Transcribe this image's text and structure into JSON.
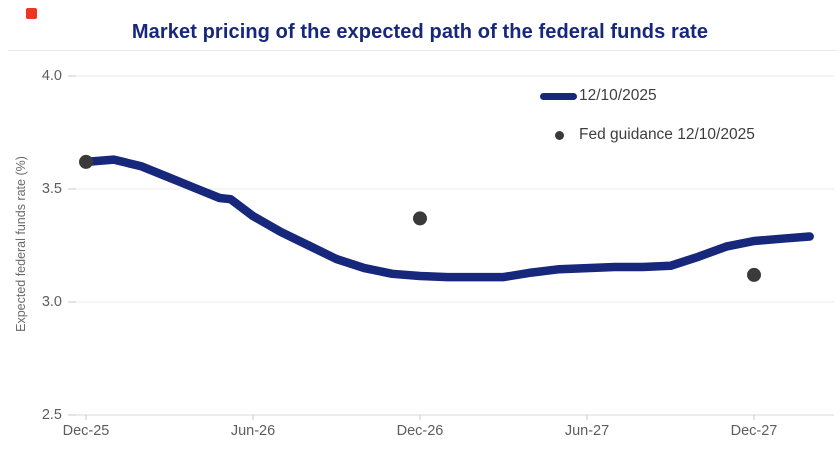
{
  "header": {
    "marker_icon": "red-square-marker"
  },
  "chart_data": {
    "type": "line",
    "title": "Market pricing of the expected path of the federal funds rate",
    "ylabel": "Expected federal funds rate (%)",
    "xlabel": "",
    "ylim": [
      2.5,
      4.0
    ],
    "grid": "horizontal-only",
    "legend_position": "top-right-inside",
    "x_unit": "months-after-Dec-2025",
    "colors": {
      "line": "#17277b",
      "guidance_dot": "#3a3a3a",
      "axis_text": "#5d5d5d",
      "gridline": "#ebebeb",
      "red_marker": "#ee3524"
    },
    "yticks": {
      "values": [
        4.0,
        3.5,
        3.0,
        2.5
      ],
      "labels": [
        "4.0",
        "3.5",
        "3.0",
        "2.5"
      ]
    },
    "xticks": {
      "months": [
        0,
        6,
        12,
        18,
        24
      ],
      "labels": [
        "Dec-25",
        "Jun-26",
        "Dec-26",
        "Jun-27",
        "Dec-27"
      ]
    },
    "series": [
      {
        "name": "12/10/2025",
        "type": "line",
        "x_months": [
          0,
          1,
          2,
          3,
          4,
          4.8,
          5.2,
          6,
          7,
          8,
          9,
          10,
          11,
          12,
          13,
          14,
          15,
          16,
          17,
          18,
          19,
          20,
          21,
          22,
          23,
          24,
          25,
          26
        ],
        "values": [
          3.62,
          3.63,
          3.6,
          3.55,
          3.5,
          3.46,
          3.455,
          3.38,
          3.31,
          3.25,
          3.19,
          3.15,
          3.125,
          3.115,
          3.11,
          3.11,
          3.11,
          3.13,
          3.145,
          3.15,
          3.155,
          3.155,
          3.16,
          3.2,
          3.245,
          3.27,
          3.28,
          3.29
        ]
      },
      {
        "name": "Fed guidance 12/10/2025",
        "type": "scatter",
        "x_months": [
          0,
          12,
          24
        ],
        "values": [
          3.62,
          3.37,
          3.12
        ]
      }
    ]
  }
}
